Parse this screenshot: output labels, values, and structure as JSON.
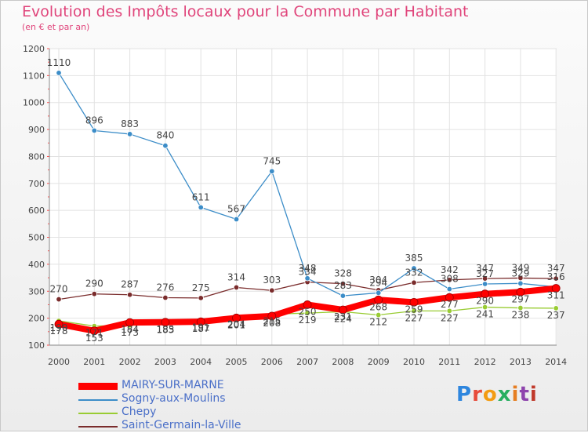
{
  "title": "Evolution des Impôts locaux pour la Commune par Habitant",
  "subtitle": "(en € et par an)",
  "brand": {
    "text": "Proxiti",
    "colors": [
      "#2e86de",
      "#e74c3c",
      "#f39c12",
      "#27ae60",
      "#e67e22",
      "#8e44ad",
      "#c0392b"
    ]
  },
  "chart_data": {
    "type": "line",
    "title": "Evolution des Impôts locaux pour la Commune par Habitant",
    "ylabel": "(en € et par an)",
    "xlabel": "",
    "ylim": [
      100,
      1200
    ],
    "yticks": [
      "100",
      "200",
      "300",
      "400",
      "500",
      "600",
      "700",
      "800",
      "900",
      "1000",
      "1100",
      "1200"
    ],
    "categories": [
      "2000",
      "2001",
      "2002",
      "2003",
      "2004",
      "2005",
      "2006",
      "2007",
      "2008",
      "2009",
      "2010",
      "2011",
      "2012",
      "2013",
      "2014"
    ],
    "series": [
      {
        "name": "MAIRY-SUR-MARNE",
        "color": "#ff0000",
        "values": [
          178,
          153,
          184,
          185,
          187,
          201,
          208,
          250,
          231,
          268,
          259,
          277,
          290,
          297,
          311
        ],
        "labels": [
          "178",
          "153",
          "184",
          "185",
          "187",
          "201",
          "208",
          "250",
          "231",
          "268",
          "259",
          "277",
          "290",
          "297",
          "311"
        ]
      },
      {
        "name": "Sogny-aux-Moulins",
        "color": "#3c8dc8",
        "values": [
          1110,
          896,
          883,
          840,
          611,
          567,
          745,
          348,
          283,
          294,
          385,
          308,
          327,
          329,
          316
        ],
        "labels": [
          "1110",
          "896",
          "883",
          "840",
          "611",
          "567",
          "745",
          "348",
          "283",
          "294",
          "385",
          "308",
          "327",
          "329",
          "316"
        ]
      },
      {
        "name": "Chepy",
        "color": "#99cc33",
        "values": [
          190,
          171,
          173,
          183,
          191,
          204,
          215,
          219,
          224,
          212,
          227,
          227,
          241,
          238,
          237
        ],
        "labels": [
          "190",
          "171",
          "173",
          "183",
          "191",
          "204",
          "215",
          "219",
          "224",
          "212",
          "227",
          "227",
          "241",
          "238",
          "237"
        ]
      },
      {
        "name": "Saint-Germain-la-Ville",
        "color": "#7a2c2c",
        "values": [
          270,
          290,
          287,
          276,
          275,
          314,
          303,
          334,
          328,
          304,
          332,
          342,
          347,
          349,
          347
        ],
        "labels": [
          "270",
          "290",
          "287",
          "276",
          "275",
          "314",
          "303",
          "334",
          "328",
          "304",
          "332",
          "342",
          "347",
          "349",
          "347"
        ]
      }
    ]
  }
}
